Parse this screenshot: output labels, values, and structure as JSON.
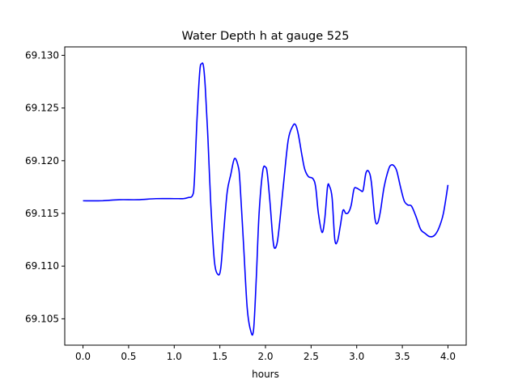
{
  "chart_data": {
    "type": "line",
    "title": "Water Depth h at gauge 525",
    "xlabel": "hours",
    "ylabel": "",
    "xlim": [
      -0.2,
      4.2
    ],
    "ylim": [
      69.1025,
      69.1308
    ],
    "xticks": [
      "0.0",
      "0.5",
      "1.0",
      "1.5",
      "2.0",
      "2.5",
      "3.0",
      "3.5",
      "4.0"
    ],
    "xtick_values": [
      0,
      0.5,
      1.0,
      1.5,
      2.0,
      2.5,
      3.0,
      3.5,
      4.0
    ],
    "yticks": [
      "69.105",
      "69.110",
      "69.115",
      "69.120",
      "69.125",
      "69.130"
    ],
    "ytick_values": [
      69.105,
      69.11,
      69.115,
      69.12,
      69.125,
      69.13
    ],
    "grid": false,
    "line_color": "#0000ff",
    "series": [
      {
        "x": [
          0.0,
          0.2,
          0.4,
          0.6,
          0.8,
          1.0,
          1.05,
          1.1,
          1.15,
          1.2,
          1.22,
          1.25,
          1.28,
          1.3,
          1.32,
          1.34,
          1.37,
          1.4,
          1.44,
          1.48,
          1.51,
          1.54,
          1.58,
          1.62,
          1.66,
          1.7,
          1.72,
          1.76,
          1.8,
          1.84,
          1.87,
          1.9,
          1.93,
          1.97,
          2.0,
          2.02,
          2.05,
          2.08,
          2.1,
          2.13,
          2.16,
          2.2,
          2.25,
          2.3,
          2.33,
          2.36,
          2.4,
          2.43,
          2.47,
          2.52,
          2.55,
          2.58,
          2.62,
          2.65,
          2.68,
          2.7,
          2.73,
          2.76,
          2.79,
          2.82,
          2.85,
          2.88,
          2.91,
          2.94,
          2.97,
          3.0,
          3.04,
          3.07,
          3.1,
          3.13,
          3.16,
          3.2,
          3.23,
          3.26,
          3.3,
          3.35,
          3.38,
          3.41,
          3.44,
          3.48,
          3.52,
          3.56,
          3.6,
          3.65,
          3.7,
          3.75,
          3.8,
          3.85,
          3.9,
          3.95,
          4.0
        ],
        "values": [
          69.1162,
          69.1162,
          69.1163,
          69.1163,
          69.1164,
          69.1164,
          69.1164,
          69.1164,
          69.1165,
          69.1167,
          69.118,
          69.124,
          69.1285,
          69.1292,
          69.129,
          69.127,
          69.122,
          69.116,
          69.1105,
          69.1092,
          69.1098,
          69.113,
          69.117,
          69.1187,
          69.1202,
          69.1195,
          69.118,
          69.112,
          69.106,
          69.1038,
          69.104,
          69.109,
          69.115,
          69.119,
          69.1194,
          69.1188,
          69.116,
          69.1127,
          69.1117,
          69.1123,
          69.1145,
          69.118,
          69.122,
          69.1233,
          69.1234,
          69.1225,
          69.1205,
          69.1192,
          69.1185,
          69.1183,
          69.1175,
          69.115,
          69.1132,
          69.1145,
          69.1175,
          69.1176,
          69.1165,
          69.1125,
          69.1124,
          69.1138,
          69.1153,
          69.115,
          69.1151,
          69.1158,
          69.1173,
          69.1174,
          69.1172,
          69.1172,
          69.1188,
          69.119,
          69.118,
          69.1145,
          69.1141,
          69.1152,
          69.1175,
          69.1192,
          69.1196,
          69.1195,
          69.119,
          69.1175,
          69.1162,
          69.1158,
          69.1157,
          69.1147,
          69.1135,
          69.1131,
          69.1128,
          69.1129,
          69.1136,
          69.115,
          69.1177
        ]
      }
    ]
  }
}
